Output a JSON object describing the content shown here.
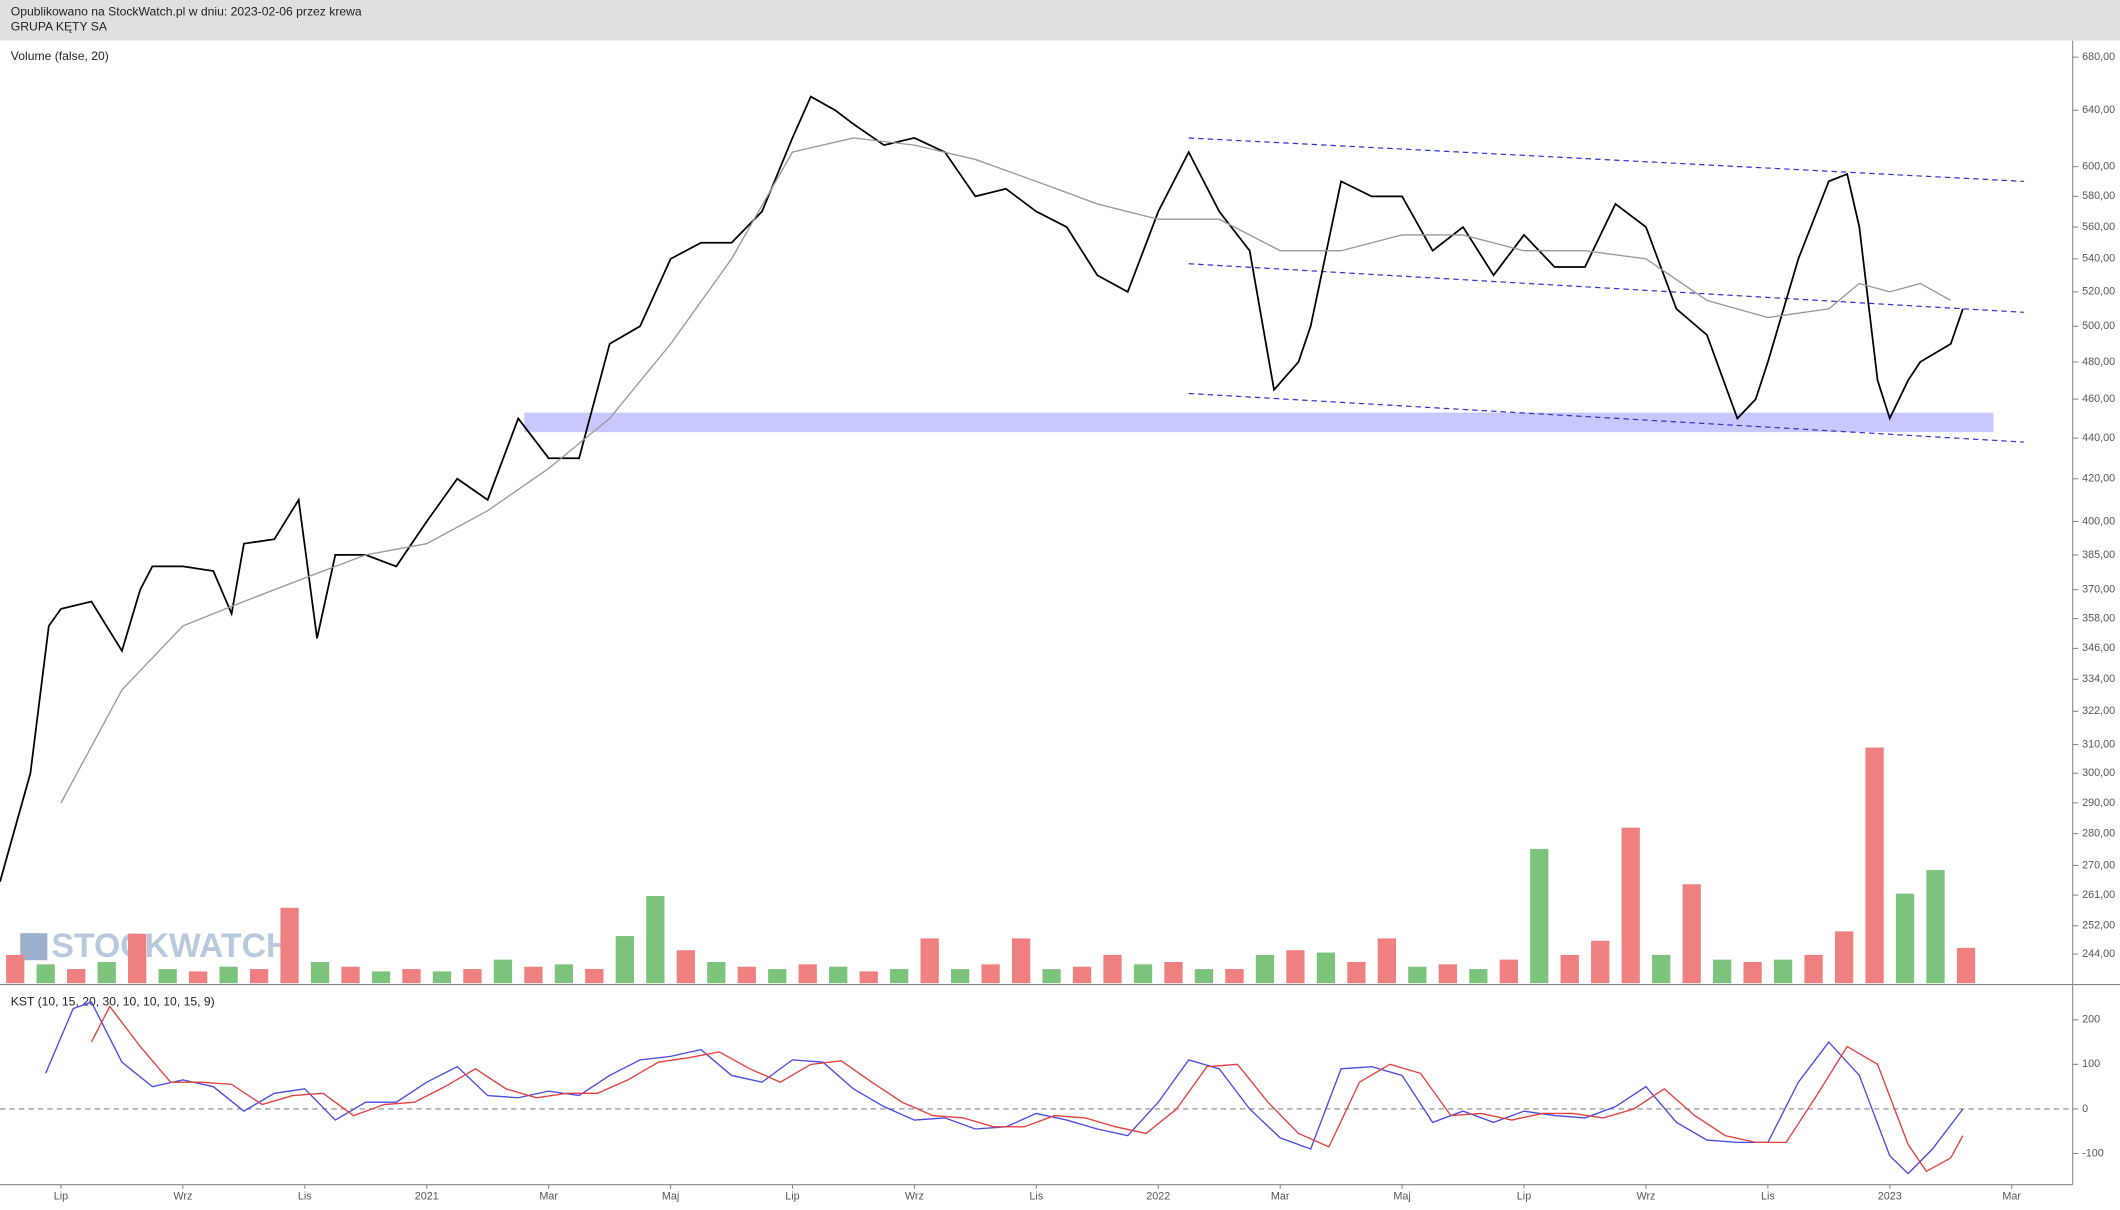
{
  "header": {
    "published": "Opublikowano na StockWatch.pl w dniu: 2023-02-06 przez krewa",
    "symbol": "GRUPA KĘTY SA"
  },
  "watermark": "STOCKWATCH",
  "chart_data": [
    {
      "type": "line",
      "label": "Volume (false, 20)",
      "log_scale": true,
      "xlim": [
        0,
        34
      ],
      "ylim": [
        236,
        693
      ],
      "yticks": [
        {
          "value": 680,
          "label": "680,00"
        },
        {
          "value": 640,
          "label": "640,00"
        },
        {
          "value": 600,
          "label": "600,00"
        },
        {
          "value": 580,
          "label": "580,00"
        },
        {
          "value": 560,
          "label": "560,00"
        },
        {
          "value": 540,
          "label": "540,00"
        },
        {
          "value": 520,
          "label": "520,00"
        },
        {
          "value": 500,
          "label": "500,00"
        },
        {
          "value": 480,
          "label": "480,00"
        },
        {
          "value": 460,
          "label": "460,00"
        },
        {
          "value": 440,
          "label": "440,00"
        },
        {
          "value": 420,
          "label": "420,00"
        },
        {
          "value": 400,
          "label": "400,00"
        },
        {
          "value": 385,
          "label": "385,00"
        },
        {
          "value": 370,
          "label": "370,00"
        },
        {
          "value": 358,
          "label": "358,00"
        },
        {
          "value": 346,
          "label": "346,00"
        },
        {
          "value": 334,
          "label": "334,00"
        },
        {
          "value": 322,
          "label": "322,00"
        },
        {
          "value": 310,
          "label": "310,00"
        },
        {
          "value": 300,
          "label": "300,00"
        },
        {
          "value": 290,
          "label": "290,00"
        },
        {
          "value": 280,
          "label": "280,00"
        },
        {
          "value": 270,
          "label": "270,00"
        },
        {
          "value": 261,
          "label": "261,00"
        },
        {
          "value": 252,
          "label": "252,00"
        },
        {
          "value": 244,
          "label": "244,00"
        }
      ],
      "series": [
        {
          "color": "#000000",
          "x": [
            0,
            0.5,
            0.8,
            1,
            1.5,
            2,
            2.3,
            2.5,
            3,
            3.5,
            3.8,
            4,
            4.5,
            4.9,
            5.2,
            5.5,
            6,
            6.5,
            7,
            7.5,
            8,
            8.5,
            9,
            9.5,
            10,
            10.5,
            11,
            11.5,
            12,
            12.5,
            13,
            13.3,
            13.7,
            14,
            14.5,
            15,
            15.5,
            16,
            16.5,
            17,
            17.5,
            18,
            18.5,
            19,
            19.5,
            20,
            20.5,
            20.9,
            21.3,
            21.5,
            22,
            22.5,
            23,
            23.5,
            24,
            24.5,
            25,
            25.5,
            26,
            26.5,
            27,
            27.5,
            28,
            28.5,
            28.8,
            29,
            29.5,
            30,
            30.3,
            30.5,
            30.8,
            31,
            31.3,
            31.5,
            32,
            32.2
          ],
          "values": [
            265,
            300,
            355,
            362,
            365,
            345,
            370,
            380,
            380,
            378,
            360,
            390,
            392,
            410,
            350,
            385,
            385,
            380,
            400,
            420,
            410,
            450,
            430,
            430,
            490,
            500,
            540,
            550,
            550,
            570,
            620,
            650,
            640,
            630,
            615,
            620,
            610,
            580,
            585,
            570,
            560,
            530,
            520,
            570,
            610,
            570,
            545,
            465,
            480,
            500,
            590,
            580,
            580,
            545,
            560,
            530,
            555,
            535,
            535,
            575,
            560,
            510,
            495,
            450,
            460,
            480,
            540,
            590,
            595,
            560,
            470,
            450,
            470,
            480,
            490,
            510
          ]
        },
        {
          "color": "#999999",
          "x": [
            1,
            2,
            3,
            4,
            5,
            6,
            7,
            8,
            9,
            10,
            11,
            12,
            13,
            14,
            15,
            16,
            17,
            18,
            19,
            20,
            21,
            22,
            23,
            24,
            25,
            26,
            27,
            28,
            29,
            30,
            30.5,
            31,
            31.5,
            32
          ],
          "values": [
            290,
            330,
            355,
            365,
            375,
            385,
            390,
            405,
            425,
            450,
            490,
            540,
            610,
            620,
            615,
            605,
            590,
            575,
            565,
            565,
            545,
            545,
            555,
            555,
            545,
            545,
            540,
            515,
            505,
            510,
            525,
            520,
            525,
            515
          ]
        }
      ],
      "trendlines": [
        {
          "color": "#3333cc",
          "x": [
            19.5,
            33.2
          ],
          "y": [
            620,
            590
          ]
        },
        {
          "color": "#3333cc",
          "x": [
            19.5,
            33.2
          ],
          "y": [
            537,
            508
          ]
        },
        {
          "color": "#3333cc",
          "x": [
            19.5,
            33.2
          ],
          "y": [
            463,
            438
          ]
        }
      ],
      "zone": {
        "color": "#c8c8ff",
        "x": [
          8.6,
          32.7
        ],
        "y": [
          443,
          453
        ]
      },
      "volume": {
        "ylim": [
          0,
          100
        ],
        "x": [
          0.25,
          0.75,
          1.25,
          1.75,
          2.25,
          2.75,
          3.25,
          3.75,
          4.25,
          4.75,
          5.25,
          5.75,
          6.25,
          6.75,
          7.25,
          7.75,
          8.25,
          8.75,
          9.25,
          9.75,
          10.25,
          10.75,
          11.25,
          11.75,
          12.25,
          12.75,
          13.25,
          13.75,
          14.25,
          14.75,
          15.25,
          15.75,
          16.25,
          16.75,
          17.25,
          17.75,
          18.25,
          18.75,
          19.25,
          19.75,
          20.25,
          20.75,
          21.25,
          21.75,
          22.25,
          22.75,
          23.25,
          23.75,
          24.25,
          24.75,
          25.25,
          25.75,
          26.25,
          26.75,
          27.25,
          27.75,
          28.25,
          28.75,
          29.25,
          29.75,
          30.25,
          30.75,
          31.25,
          31.75,
          32.25
        ],
        "values": [
          12,
          8,
          6,
          9,
          21,
          6,
          5,
          7,
          6,
          32,
          9,
          7,
          5,
          6,
          5,
          6,
          10,
          7,
          8,
          6,
          20,
          37,
          14,
          9,
          7,
          6,
          8,
          7,
          5,
          6,
          19,
          6,
          8,
          19,
          6,
          7,
          12,
          8,
          9,
          6,
          6,
          12,
          14,
          13,
          9,
          19,
          7,
          8,
          6,
          10,
          57,
          12,
          18,
          66,
          12,
          42,
          10,
          9,
          10,
          12,
          22,
          100,
          38,
          48,
          15
        ],
        "colors": [
          "#f08080",
          "#7cc47c",
          "#f08080",
          "#7cc47c",
          "#f08080",
          "#7cc47c",
          "#f08080",
          "#7cc47c",
          "#f08080",
          "#f08080",
          "#7cc47c",
          "#f08080",
          "#7cc47c",
          "#f08080",
          "#7cc47c",
          "#f08080",
          "#7cc47c",
          "#f08080",
          "#7cc47c",
          "#f08080",
          "#7cc47c",
          "#7cc47c",
          "#f08080",
          "#7cc47c",
          "#f08080",
          "#7cc47c",
          "#f08080",
          "#7cc47c",
          "#f08080",
          "#7cc47c",
          "#f08080",
          "#7cc47c",
          "#f08080",
          "#f08080",
          "#7cc47c",
          "#f08080",
          "#f08080",
          "#7cc47c",
          "#f08080",
          "#7cc47c",
          "#f08080",
          "#7cc47c",
          "#f08080",
          "#7cc47c",
          "#f08080",
          "#f08080",
          "#7cc47c",
          "#f08080",
          "#7cc47c",
          "#f08080",
          "#7cc47c",
          "#f08080",
          "#f08080",
          "#f08080",
          "#7cc47c",
          "#f08080",
          "#7cc47c",
          "#f08080",
          "#7cc47c",
          "#f08080",
          "#f08080",
          "#f08080",
          "#7cc47c",
          "#7cc47c",
          "#f08080"
        ]
      }
    },
    {
      "type": "line",
      "label": "KST (10, 15, 20, 30, 10, 10, 10, 15, 9)",
      "xlim": [
        0,
        34
      ],
      "ylim": [
        -170,
        276
      ],
      "yticks": [
        200,
        100,
        0,
        -100
      ],
      "zero_line": 0,
      "xticks": [
        {
          "value": 1,
          "label": "Lip"
        },
        {
          "value": 3,
          "label": "Wrz"
        },
        {
          "value": 5,
          "label": "Lis"
        },
        {
          "value": 7,
          "label": "2021"
        },
        {
          "value": 9,
          "label": "Mar"
        },
        {
          "value": 11,
          "label": "Maj"
        },
        {
          "value": 13,
          "label": "Lip"
        },
        {
          "value": 15,
          "label": "Wrz"
        },
        {
          "value": 17,
          "label": "Lis"
        },
        {
          "value": 19,
          "label": "2022"
        },
        {
          "value": 21,
          "label": "Mar"
        },
        {
          "value": 23,
          "label": "Maj"
        },
        {
          "value": 25,
          "label": "Lip"
        },
        {
          "value": 27,
          "label": "Wrz"
        },
        {
          "value": 29,
          "label": "Lis"
        },
        {
          "value": 31,
          "label": "2023"
        },
        {
          "value": 33,
          "label": "Mar"
        }
      ],
      "series": [
        {
          "color": "#4a4ae0",
          "x": [
            0.75,
            1.2,
            1.5,
            2,
            2.5,
            3,
            3.5,
            4,
            4.5,
            5,
            5.5,
            6,
            6.5,
            7,
            7.5,
            8,
            8.5,
            9,
            9.5,
            10,
            10.5,
            11,
            11.5,
            12,
            12.5,
            13,
            13.5,
            14,
            14.5,
            15,
            15.5,
            16,
            16.5,
            17,
            17.5,
            18,
            18.5,
            19,
            19.5,
            20,
            20.5,
            21,
            21.5,
            22,
            22.5,
            23,
            23.5,
            24,
            24.5,
            25,
            25.5,
            26,
            26.5,
            27,
            27.5,
            28,
            28.5,
            29,
            29.5,
            30,
            30.5,
            31,
            31.3,
            31.7,
            32.2
          ],
          "values": [
            80,
            225,
            240,
            105,
            50,
            65,
            50,
            -5,
            35,
            45,
            -25,
            15,
            15,
            60,
            95,
            30,
            25,
            40,
            30,
            75,
            110,
            118,
            133,
            75,
            60,
            110,
            105,
            45,
            5,
            -25,
            -20,
            -45,
            -40,
            -10,
            -25,
            -45,
            -60,
            15,
            110,
            90,
            0,
            -65,
            -90,
            90,
            95,
            75,
            -30,
            -5,
            -30,
            -5,
            -15,
            -20,
            5,
            50,
            -30,
            -70,
            -75,
            -75,
            60,
            150,
            75,
            -105,
            -145,
            -90,
            0
          ]
        },
        {
          "color": "#e04040",
          "x": [
            1.5,
            1.8,
            2.3,
            2.8,
            3.3,
            3.8,
            4.3,
            4.8,
            5.3,
            5.8,
            6.3,
            6.8,
            7.3,
            7.8,
            8.3,
            8.8,
            9.3,
            9.8,
            10.3,
            10.8,
            11.3,
            11.8,
            12.3,
            12.8,
            13.3,
            13.8,
            14.3,
            14.8,
            15.3,
            15.8,
            16.3,
            16.8,
            17.3,
            17.8,
            18.3,
            18.8,
            19.3,
            19.8,
            20.3,
            20.8,
            21.3,
            21.8,
            22.3,
            22.8,
            23.3,
            23.8,
            24.3,
            24.8,
            25.3,
            25.8,
            26.3,
            26.8,
            27.3,
            27.8,
            28.3,
            28.8,
            29.3,
            29.8,
            30.3,
            30.8,
            31.3,
            31.6,
            32,
            32.2
          ],
          "values": [
            150,
            230,
            140,
            60,
            60,
            55,
            10,
            30,
            35,
            -15,
            10,
            15,
            50,
            90,
            45,
            25,
            35,
            35,
            65,
            105,
            115,
            128,
            90,
            60,
            100,
            108,
            60,
            15,
            -15,
            -20,
            -40,
            -40,
            -15,
            -20,
            -40,
            -55,
            0,
            95,
            100,
            15,
            -55,
            -85,
            60,
            100,
            80,
            -15,
            -10,
            -25,
            -10,
            -10,
            -20,
            0,
            45,
            -15,
            -60,
            -75,
            -75,
            30,
            140,
            100,
            -80,
            -140,
            -110,
            -60
          ]
        }
      ]
    }
  ]
}
